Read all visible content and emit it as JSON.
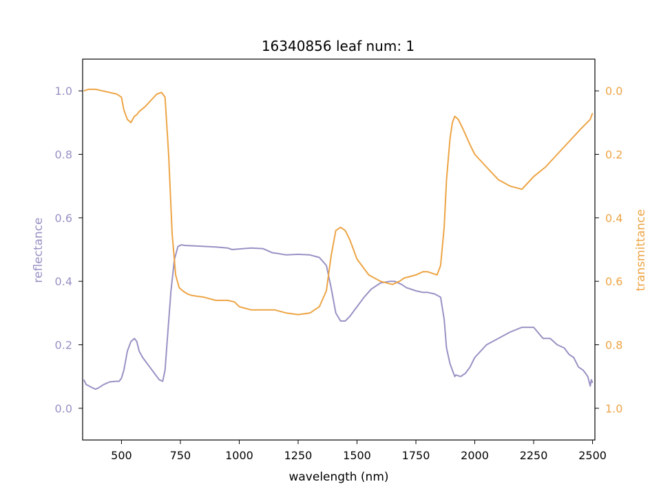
{
  "chart_data": {
    "type": "line",
    "title": "16340856 leaf num: 1",
    "xlabel": "wavelength (nm)",
    "ylabel_left": "reflectance",
    "ylabel_right": "transmittance",
    "xlim": [
      335,
      2510
    ],
    "ylim_left": [
      -0.1,
      1.1
    ],
    "ylim_right": [
      1.1,
      -0.1
    ],
    "right_axis_inverted": true,
    "x_ticks": [
      500,
      750,
      1000,
      1250,
      1500,
      1750,
      2000,
      2250,
      2500
    ],
    "y_ticks_left": [
      0.0,
      0.2,
      0.4,
      0.6,
      0.8,
      1.0
    ],
    "y_ticks_right": [
      0.0,
      0.2,
      0.4,
      0.6,
      0.8,
      1.0
    ],
    "grid": false,
    "colors": {
      "reflectance": "#9891c4",
      "transmittance": "#eda444",
      "axes": "#000000"
    },
    "series": [
      {
        "name": "reflectance",
        "axis": "left",
        "x": [
          340,
          350,
          375,
          390,
          400,
          425,
          450,
          475,
          490,
          500,
          510,
          525,
          540,
          555,
          565,
          575,
          590,
          600,
          620,
          640,
          660,
          675,
          685,
          695,
          710,
          725,
          740,
          755,
          770,
          800,
          850,
          900,
          950,
          970,
          1000,
          1050,
          1100,
          1140,
          1160,
          1200,
          1250,
          1300,
          1340,
          1370,
          1390,
          1410,
          1430,
          1450,
          1470,
          1500,
          1530,
          1560,
          1600,
          1640,
          1660,
          1690,
          1710,
          1750,
          1780,
          1800,
          1830,
          1855,
          1870,
          1880,
          1895,
          1905,
          1915,
          1920,
          1940,
          1960,
          1980,
          2000,
          2050,
          2100,
          2150,
          2200,
          2250,
          2290,
          2320,
          2350,
          2380,
          2400,
          2420,
          2440,
          2460,
          2480,
          2490,
          2495,
          2500
        ],
        "y": [
          0.09,
          0.075,
          0.065,
          0.06,
          0.063,
          0.075,
          0.083,
          0.085,
          0.085,
          0.095,
          0.12,
          0.18,
          0.21,
          0.22,
          0.21,
          0.18,
          0.16,
          0.15,
          0.13,
          0.11,
          0.09,
          0.085,
          0.12,
          0.22,
          0.37,
          0.47,
          0.51,
          0.515,
          0.513,
          0.512,
          0.51,
          0.508,
          0.505,
          0.5,
          0.502,
          0.505,
          0.503,
          0.49,
          0.488,
          0.483,
          0.485,
          0.483,
          0.475,
          0.45,
          0.38,
          0.3,
          0.275,
          0.275,
          0.29,
          0.32,
          0.35,
          0.375,
          0.395,
          0.4,
          0.4,
          0.39,
          0.38,
          0.37,
          0.365,
          0.365,
          0.36,
          0.35,
          0.28,
          0.19,
          0.14,
          0.12,
          0.1,
          0.105,
          0.1,
          0.11,
          0.13,
          0.16,
          0.2,
          0.22,
          0.24,
          0.255,
          0.255,
          0.22,
          0.22,
          0.2,
          0.19,
          0.17,
          0.16,
          0.13,
          0.12,
          0.1,
          0.07,
          0.09,
          0.08
        ]
      },
      {
        "name": "transmittance",
        "axis": "right",
        "x": [
          340,
          360,
          390,
          420,
          450,
          480,
          500,
          510,
          525,
          540,
          555,
          565,
          575,
          600,
          625,
          650,
          670,
          685,
          700,
          715,
          730,
          745,
          760,
          780,
          800,
          850,
          900,
          950,
          980,
          1000,
          1050,
          1100,
          1150,
          1200,
          1250,
          1300,
          1340,
          1370,
          1390,
          1410,
          1430,
          1450,
          1470,
          1500,
          1550,
          1600,
          1650,
          1680,
          1700,
          1750,
          1780,
          1800,
          1840,
          1855,
          1870,
          1880,
          1895,
          1905,
          1915,
          1930,
          1950,
          1980,
          2000,
          2050,
          2100,
          2150,
          2200,
          2250,
          2300,
          2350,
          2400,
          2450,
          2490,
          2500
        ],
        "y": [
          0.0,
          -0.005,
          -0.005,
          0.0,
          0.005,
          0.01,
          0.02,
          0.06,
          0.09,
          0.1,
          0.08,
          0.075,
          0.065,
          0.05,
          0.03,
          0.01,
          0.005,
          0.02,
          0.2,
          0.45,
          0.58,
          0.62,
          0.63,
          0.64,
          0.645,
          0.65,
          0.66,
          0.66,
          0.665,
          0.68,
          0.69,
          0.69,
          0.69,
          0.7,
          0.705,
          0.7,
          0.68,
          0.63,
          0.52,
          0.44,
          0.43,
          0.44,
          0.47,
          0.53,
          0.58,
          0.6,
          0.61,
          0.6,
          0.59,
          0.58,
          0.57,
          0.57,
          0.58,
          0.55,
          0.43,
          0.28,
          0.15,
          0.1,
          0.08,
          0.09,
          0.12,
          0.17,
          0.2,
          0.24,
          0.28,
          0.3,
          0.31,
          0.27,
          0.24,
          0.2,
          0.16,
          0.12,
          0.09,
          0.07
        ]
      }
    ]
  }
}
